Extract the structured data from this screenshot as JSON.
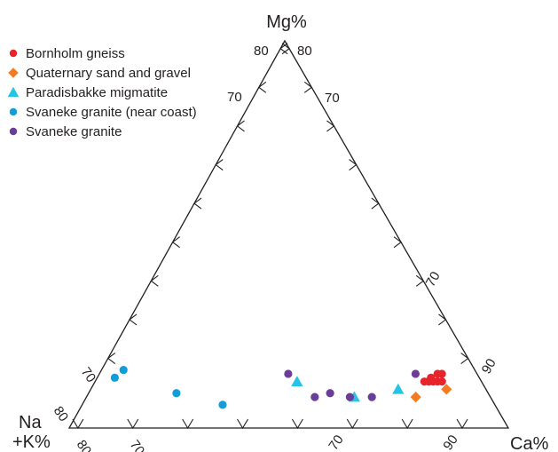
{
  "chart_data": {
    "type": "scatter",
    "ternary": true,
    "corner_labels": {
      "top": "Mg%",
      "left_line1": "Na",
      "left_line2": "+K%",
      "right": "Ca%"
    },
    "tick_labels": {
      "top_left": "80",
      "top_right": "80",
      "left_edge_upper": "70",
      "right_edge_upper": "70",
      "left_edge_lower": "70",
      "left_edge_bottom": "80",
      "bottom_left_80": "80",
      "bottom_left_70": "70",
      "bottom_right_70": "70",
      "bottom_right_90": "90",
      "right_edge_lower_70": "70",
      "right_edge_lower_90": "90"
    },
    "legend_position": "top-left",
    "series": [
      {
        "name": "Bornholm gneiss",
        "marker": "circle",
        "color": "#e8242b",
        "points": [
          [
            0.1,
            0.78,
            0.12
          ],
          [
            0.09,
            0.79,
            0.12
          ],
          [
            0.12,
            0.76,
            0.12
          ],
          [
            0.12,
            0.76,
            0.12
          ],
          [
            0.11,
            0.77,
            0.12
          ],
          [
            0.13,
            0.75,
            0.12
          ],
          [
            0.08,
            0.78,
            0.14
          ],
          [
            0.09,
            0.77,
            0.14
          ],
          [
            0.11,
            0.76,
            0.13
          ]
        ]
      },
      {
        "name": "Quaternary sand and gravel",
        "marker": "diamond",
        "color": "#f47b20",
        "points": [
          [
            0.17,
            0.75,
            0.08
          ],
          [
            0.09,
            0.81,
            0.1
          ]
        ]
      },
      {
        "name": "Paradisbakke migmatite",
        "marker": "triangle",
        "color": "#25c4e6",
        "points": [
          [
            0.42,
            0.46,
            0.12
          ],
          [
            0.31,
            0.61,
            0.08
          ],
          [
            0.2,
            0.7,
            0.1
          ]
        ]
      },
      {
        "name": "Svaneke granite (near coast)",
        "marker": "circle",
        "color": "#119ed8",
        "points": [
          [
            0.8,
            0.05,
            0.15
          ],
          [
            0.83,
            0.04,
            0.13
          ],
          [
            0.62,
            0.32,
            0.06
          ],
          [
            0.71,
            0.2,
            0.09
          ]
        ]
      },
      {
        "name": "Svaneke granite",
        "marker": "circle",
        "color": "#6a3d98",
        "points": [
          [
            0.43,
            0.43,
            0.14
          ],
          [
            0.4,
            0.52,
            0.08
          ],
          [
            0.36,
            0.55,
            0.09
          ],
          [
            0.32,
            0.6,
            0.08
          ],
          [
            0.27,
            0.65,
            0.08
          ],
          [
            0.14,
            0.72,
            0.14
          ]
        ]
      }
    ]
  }
}
